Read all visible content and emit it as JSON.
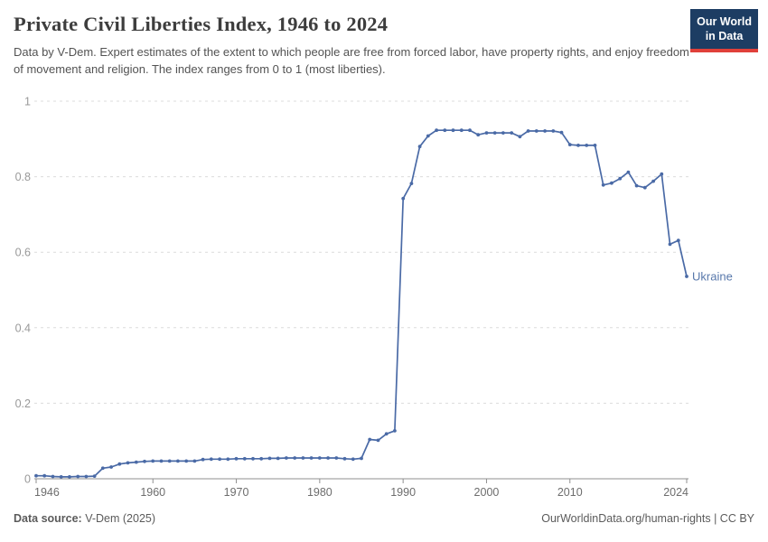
{
  "header": {
    "title": "Private Civil Liberties Index, 1946 to 2024",
    "subtitle": "Data by V-Dem. Expert estimates of the extent to which people are free from forced labor, have property rights, and enjoy freedom of movement and religion. The index ranges from 0 to 1 (most liberties).",
    "logo_line1": "Our World",
    "logo_line2": "in Data"
  },
  "chart_data": {
    "type": "line",
    "title": "Private Civil Liberties Index, 1946 to 2024",
    "xlabel": "",
    "ylabel": "",
    "xlim": [
      1946,
      2024
    ],
    "ylim": [
      0,
      1
    ],
    "grid": "horizontal-dashed",
    "x_ticks": [
      1946,
      1960,
      1970,
      1980,
      1990,
      2000,
      2010,
      2024
    ],
    "x_tick_labels": [
      "1946",
      "1960",
      "1970",
      "1980",
      "1990",
      "2000",
      "2010",
      "2024"
    ],
    "y_ticks": [
      0,
      0.2,
      0.4,
      0.6,
      0.8,
      1
    ],
    "y_tick_labels": [
      "0",
      "0.2",
      "0.4",
      "0.6",
      "0.8",
      "1"
    ],
    "legend_position": "end-of-line-label",
    "series": [
      {
        "name": "Ukraine",
        "color": "#4a6aa6",
        "points": [
          [
            1946,
            0.008
          ],
          [
            1947,
            0.008
          ],
          [
            1948,
            0.006
          ],
          [
            1949,
            0.005
          ],
          [
            1950,
            0.005
          ],
          [
            1951,
            0.006
          ],
          [
            1952,
            0.006
          ],
          [
            1953,
            0.007
          ],
          [
            1954,
            0.028
          ],
          [
            1955,
            0.031
          ],
          [
            1956,
            0.039
          ],
          [
            1957,
            0.042
          ],
          [
            1958,
            0.044
          ],
          [
            1959,
            0.046
          ],
          [
            1960,
            0.047
          ],
          [
            1961,
            0.047
          ],
          [
            1962,
            0.047
          ],
          [
            1963,
            0.047
          ],
          [
            1964,
            0.047
          ],
          [
            1965,
            0.047
          ],
          [
            1966,
            0.051
          ],
          [
            1967,
            0.052
          ],
          [
            1968,
            0.052
          ],
          [
            1969,
            0.052
          ],
          [
            1970,
            0.053
          ],
          [
            1971,
            0.053
          ],
          [
            1972,
            0.053
          ],
          [
            1973,
            0.053
          ],
          [
            1974,
            0.054
          ],
          [
            1975,
            0.054
          ],
          [
            1976,
            0.055
          ],
          [
            1977,
            0.055
          ],
          [
            1978,
            0.055
          ],
          [
            1979,
            0.055
          ],
          [
            1980,
            0.055
          ],
          [
            1981,
            0.055
          ],
          [
            1982,
            0.055
          ],
          [
            1983,
            0.053
          ],
          [
            1984,
            0.052
          ],
          [
            1985,
            0.054
          ],
          [
            1986,
            0.104
          ],
          [
            1987,
            0.102
          ],
          [
            1988,
            0.119
          ],
          [
            1989,
            0.127
          ],
          [
            1990,
            0.742
          ],
          [
            1991,
            0.782
          ],
          [
            1992,
            0.88
          ],
          [
            1993,
            0.908
          ],
          [
            1994,
            0.923
          ],
          [
            1995,
            0.923
          ],
          [
            1996,
            0.923
          ],
          [
            1997,
            0.923
          ],
          [
            1998,
            0.923
          ],
          [
            1999,
            0.911
          ],
          [
            2000,
            0.916
          ],
          [
            2001,
            0.916
          ],
          [
            2002,
            0.916
          ],
          [
            2003,
            0.916
          ],
          [
            2004,
            0.906
          ],
          [
            2005,
            0.921
          ],
          [
            2006,
            0.921
          ],
          [
            2007,
            0.921
          ],
          [
            2008,
            0.921
          ],
          [
            2009,
            0.917
          ],
          [
            2010,
            0.885
          ],
          [
            2011,
            0.883
          ],
          [
            2012,
            0.883
          ],
          [
            2013,
            0.883
          ],
          [
            2014,
            0.778
          ],
          [
            2015,
            0.783
          ],
          [
            2016,
            0.795
          ],
          [
            2017,
            0.812
          ],
          [
            2018,
            0.776
          ],
          [
            2019,
            0.771
          ],
          [
            2020,
            0.788
          ],
          [
            2021,
            0.807
          ],
          [
            2022,
            0.621
          ],
          [
            2023,
            0.631
          ],
          [
            2024,
            0.536
          ]
        ]
      }
    ]
  },
  "footer": {
    "source_label": "Data source:",
    "source_value": " V-Dem (2025)",
    "right_text": "OurWorldinData.org/human-rights | CC BY"
  },
  "colors": {
    "line": "#4a6aa6",
    "end_label": "#5878ab",
    "gridline": "#dcdcdc",
    "axis": "#8f8f8f",
    "x_tick_label": "#6d6d6d",
    "y_tick_label": "#999999",
    "logo_navy": "#1d3d63",
    "logo_red": "#e0403a"
  }
}
